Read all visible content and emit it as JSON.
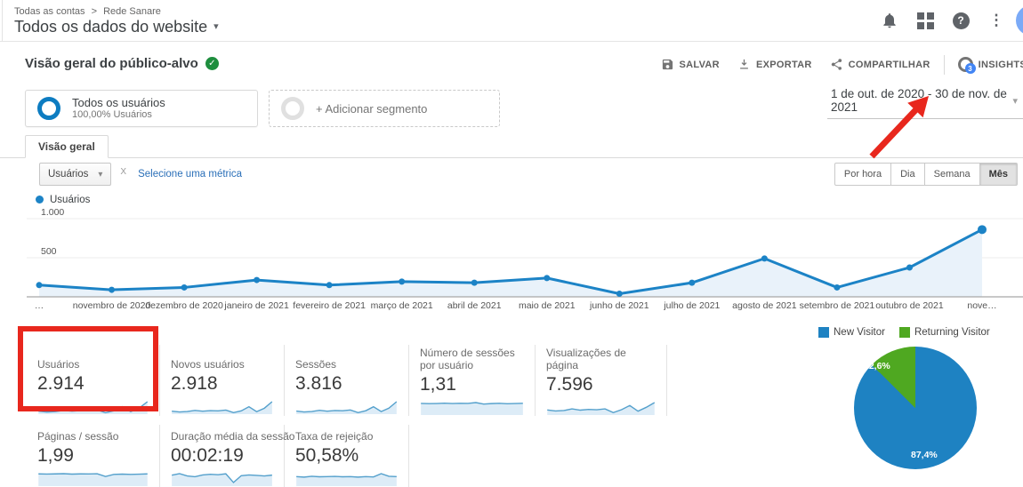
{
  "topbar": {
    "breadcrumb": [
      "Todas as contas",
      "Rede Sanare"
    ],
    "breadcrumb_separator": ">",
    "title": "Todos os dados do website"
  },
  "header": {
    "title": "Visão geral do público-alvo",
    "actions": [
      "SALVAR",
      "EXPORTAR",
      "COMPARTILHAR",
      "INSIGHTS"
    ],
    "insights_badge": "3"
  },
  "date_range": "1 de out. de 2020 - 30 de nov. de 2021",
  "segments": {
    "all_users": {
      "title": "Todos os usuários",
      "subtitle": "100,00% Usuários"
    },
    "add_label": "+ Adicionar segmento"
  },
  "tabs": {
    "overview": "Visão geral"
  },
  "controls": {
    "metric_dropdown": "Usuários",
    "vs_label": "X",
    "add_metric": "Selecione uma métrica",
    "granularity": [
      "Por hora",
      "Dia",
      "Semana",
      "Mês"
    ],
    "granularity_active": "Mês"
  },
  "colors": {
    "chart_blue": "#1c83c6",
    "chart_fill": "#e9f2fa",
    "spark_line": "#54a0cc",
    "spark_fill": "#ddecf7",
    "annotation_red": "#e8271d"
  },
  "chart_data": [
    {
      "type": "line",
      "title": "Usuários",
      "legend": "Usuários",
      "x": [
        "…",
        "novembro de 2020",
        "dezembro de 2020",
        "janeiro de 2021",
        "fevereiro de 2021",
        "março de 2021",
        "abril de 2021",
        "maio de 2021",
        "junho de 2021",
        "julho de 2021",
        "agosto de 2021",
        "setembro de 2021",
        "outubro de 2021",
        "nove…"
      ],
      "series": [
        {
          "name": "Usuários",
          "values": [
            150,
            90,
            120,
            215,
            150,
            195,
            180,
            240,
            40,
            180,
            490,
            120,
            375,
            860
          ]
        }
      ],
      "ylim": [
        0,
        1000
      ],
      "yticks": [
        {
          "value": 500,
          "label": "500"
        },
        {
          "value": 1000,
          "label": "1.000"
        }
      ],
      "grid": true,
      "legend_position": "top-left"
    },
    {
      "type": "pie",
      "labels": [
        "New Visitor",
        "Returning Visitor"
      ],
      "values": [
        87.4,
        12.6
      ],
      "display_labels": [
        "87,4%",
        "12,6%"
      ],
      "colors": [
        "#1e82c2",
        "#4fa821"
      ],
      "legend_position": "top"
    }
  ],
  "cards": [
    {
      "label": "Usuários",
      "value": "2.914",
      "spark": [
        150,
        90,
        120,
        215,
        150,
        195,
        180,
        240,
        40,
        180,
        490,
        120,
        375,
        860
      ]
    },
    {
      "label": "Novos usuários",
      "value": "2.918",
      "spark": [
        150,
        95,
        125,
        210,
        150,
        190,
        175,
        235,
        45,
        175,
        480,
        115,
        370,
        850
      ]
    },
    {
      "label": "Sessões",
      "value": "3.816",
      "spark": [
        200,
        120,
        160,
        265,
        190,
        245,
        225,
        295,
        60,
        230,
        590,
        150,
        460,
        1050
      ]
    },
    {
      "label": "Número de sessões por usuário",
      "value": "1,31",
      "spark": [
        130,
        127,
        129,
        133,
        129,
        131,
        130,
        140,
        122,
        128,
        131,
        126,
        129,
        131
      ]
    },
    {
      "label": "Visualizações de página",
      "value": "7.596",
      "spark": [
        400,
        300,
        340,
        500,
        380,
        450,
        420,
        500,
        150,
        420,
        820,
        280,
        650,
        1100
      ]
    },
    {
      "label": "Páginas / sessão",
      "value": "1,99",
      "spark": [
        200,
        197,
        200,
        204,
        196,
        200,
        199,
        203,
        155,
        192,
        196,
        192,
        195,
        200
      ]
    },
    {
      "label": "Duração média da sessão",
      "value": "00:02:19",
      "spark": [
        139,
        160,
        128,
        118,
        142,
        152,
        146,
        158,
        38,
        132,
        142,
        136,
        128,
        140
      ]
    },
    {
      "label": "Taxa de rejeição",
      "value": "50,58%",
      "spark": [
        50,
        47,
        52,
        49,
        50,
        51,
        49,
        50,
        47,
        50,
        48,
        67,
        52,
        50
      ]
    }
  ]
}
